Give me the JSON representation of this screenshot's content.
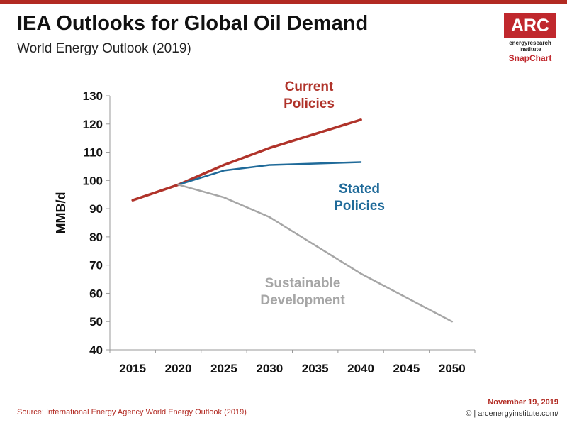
{
  "header": {
    "title": "IEA Outlooks for Global Oil Demand",
    "subtitle": "World Energy Outlook (2019)"
  },
  "logo": {
    "brand": "ARC",
    "line1": "energyresearch",
    "line2": "institute",
    "product": "SnapChart",
    "color": "#c0282d"
  },
  "footer": {
    "source": "Source: International Energy Agency World Energy Outlook (2019)",
    "date": "November 19, 2019",
    "copyright": "© | arcenergyinstitute.com/"
  },
  "chart_data": {
    "type": "line",
    "title": "",
    "xlabel": "",
    "ylabel": "MMB/d",
    "xlim": [
      2012.5,
      2052.5
    ],
    "ylim": [
      40,
      130
    ],
    "xticks": [
      2015,
      2020,
      2025,
      2030,
      2035,
      2040,
      2045,
      2050
    ],
    "yticks": [
      40,
      50,
      60,
      70,
      80,
      90,
      100,
      110,
      120,
      130
    ],
    "grid": false,
    "series": [
      {
        "name": "Current Policies",
        "label_lines": [
          "Current",
          "Policies"
        ],
        "color": "#b0332a",
        "x": [
          2015,
          2020,
          2025,
          2030,
          2035,
          2040
        ],
        "y": [
          93,
          98.5,
          105.5,
          111.5,
          116.5,
          121.5
        ]
      },
      {
        "name": "Stated Policies",
        "label_lines": [
          "Stated",
          "Policies"
        ],
        "color": "#1f6a99",
        "x": [
          2020,
          2025,
          2030,
          2035,
          2040
        ],
        "y": [
          98.5,
          103.5,
          105.5,
          106,
          106.5
        ]
      },
      {
        "name": "Sustainable Development",
        "label_lines": [
          "Sustainable",
          "Development"
        ],
        "color": "#a6a6a6",
        "x": [
          2020,
          2025,
          2030,
          2035,
          2040,
          2045,
          2050
        ],
        "y": [
          98.5,
          94,
          87,
          77,
          67,
          58.5,
          50
        ]
      }
    ]
  }
}
